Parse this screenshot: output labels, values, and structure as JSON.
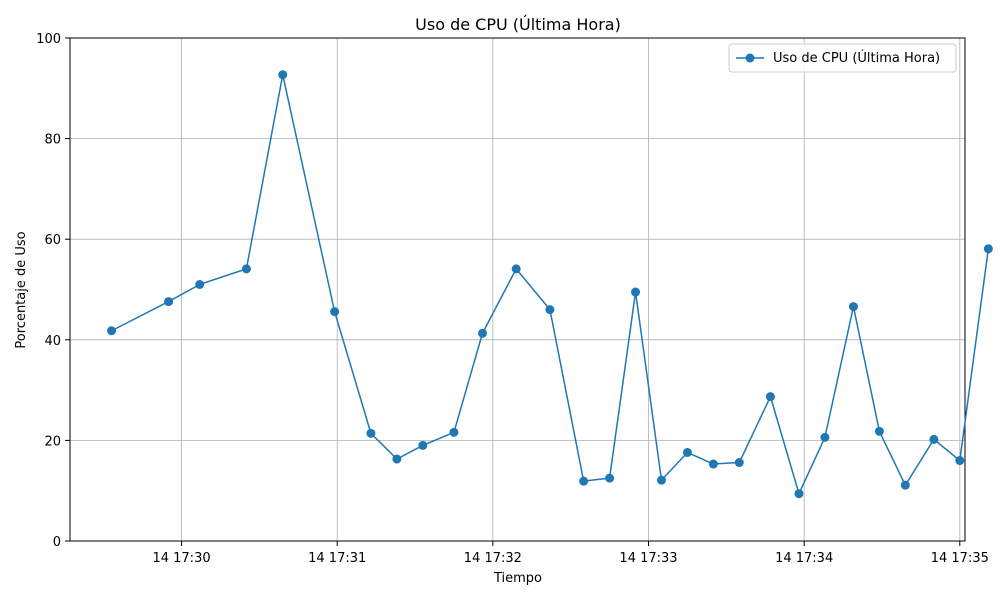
{
  "chart_data": {
    "type": "line",
    "title": "Uso de CPU (Última Hora)",
    "xlabel": "Tiempo",
    "ylabel": "Porcentaje de Uso",
    "xlim": [
      "14 17:29:17",
      "14 17:35:02"
    ],
    "ylim": [
      0,
      100
    ],
    "grid": true,
    "legend_position": "top-right",
    "x_ticks": [
      {
        "t": "14 17:30:00",
        "label": "14 17:30"
      },
      {
        "t": "14 17:31:00",
        "label": "14 17:31"
      },
      {
        "t": "14 17:32:00",
        "label": "14 17:32"
      },
      {
        "t": "14 17:33:00",
        "label": "14 17:33"
      },
      {
        "t": "14 17:34:00",
        "label": "14 17:34"
      },
      {
        "t": "14 17:35:00",
        "label": "14 17:35"
      }
    ],
    "y_ticks": [
      0,
      20,
      40,
      60,
      80,
      100
    ],
    "series": [
      {
        "name": "Uso de CPU (Última Hora)",
        "color": "#1f77b4",
        "marker": "circle",
        "points": [
          {
            "t": "14 17:29:33",
            "y": 41.8
          },
          {
            "t": "14 17:29:55",
            "y": 47.6
          },
          {
            "t": "14 17:30:07",
            "y": 51.0
          },
          {
            "t": "14 17:30:25",
            "y": 54.1
          },
          {
            "t": "14 17:30:39",
            "y": 92.7
          },
          {
            "t": "14 17:30:59",
            "y": 45.6
          },
          {
            "t": "14 17:31:13",
            "y": 21.4
          },
          {
            "t": "14 17:31:23",
            "y": 16.3
          },
          {
            "t": "14 17:31:33",
            "y": 19.0
          },
          {
            "t": "14 17:31:45",
            "y": 21.6
          },
          {
            "t": "14 17:31:56",
            "y": 41.3
          },
          {
            "t": "14 17:32:09",
            "y": 54.1
          },
          {
            "t": "14 17:32:22",
            "y": 46.0
          },
          {
            "t": "14 17:32:35",
            "y": 11.9
          },
          {
            "t": "14 17:32:45",
            "y": 12.5
          },
          {
            "t": "14 17:32:55",
            "y": 49.5
          },
          {
            "t": "14 17:33:05",
            "y": 12.1
          },
          {
            "t": "14 17:33:15",
            "y": 17.6
          },
          {
            "t": "14 17:33:25",
            "y": 15.3
          },
          {
            "t": "14 17:33:35",
            "y": 15.6
          },
          {
            "t": "14 17:33:47",
            "y": 28.7
          },
          {
            "t": "14 17:33:58",
            "y": 9.4
          },
          {
            "t": "14 17:34:08",
            "y": 20.6
          },
          {
            "t": "14 17:34:19",
            "y": 46.6
          },
          {
            "t": "14 17:34:29",
            "y": 21.8
          },
          {
            "t": "14 17:34:39",
            "y": 11.1
          },
          {
            "t": "14 17:34:50",
            "y": 20.2
          },
          {
            "t": "14 17:35:00",
            "y": 16.0
          },
          {
            "t": "14 17:35:11",
            "y": 58.1
          }
        ]
      }
    ]
  }
}
